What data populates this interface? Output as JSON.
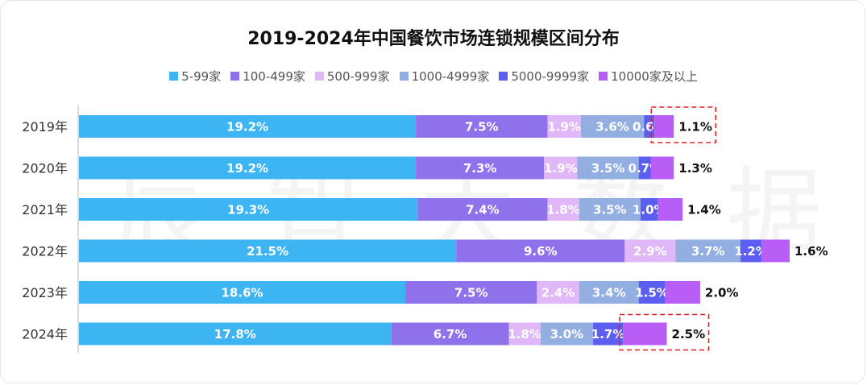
{
  "chart_data": {
    "type": "bar",
    "orientation": "horizontal",
    "stacked": true,
    "title": "2019-2024年中国餐饮市场连锁规模区间分布",
    "categories": [
      "2019年",
      "2020年",
      "2021年",
      "2022年",
      "2023年",
      "2024年"
    ],
    "series": [
      {
        "name": "5-99家",
        "color": "#3db5f2",
        "values": [
          19.2,
          19.2,
          19.3,
          21.5,
          18.6,
          17.8
        ],
        "labels": [
          "19.2%",
          "19.2%",
          "19.3%",
          "21.5%",
          "18.6%",
          "17.8%"
        ]
      },
      {
        "name": "100-499家",
        "color": "#8f72eb",
        "values": [
          7.5,
          7.3,
          7.4,
          9.6,
          7.5,
          6.7
        ],
        "labels": [
          "7.5%",
          "7.3%",
          "7.4%",
          "9.6%",
          "7.5%",
          "6.7%"
        ]
      },
      {
        "name": "500-999家",
        "color": "#e0b8f7",
        "values": [
          1.9,
          1.9,
          1.8,
          2.9,
          2.4,
          1.8
        ],
        "labels": [
          "1.9%",
          "1.9%",
          "1.8%",
          "2.9%",
          "2.4%",
          "1.8%"
        ]
      },
      {
        "name": "1000-4999家",
        "color": "#93aee0",
        "values": [
          3.6,
          3.5,
          3.5,
          3.7,
          3.4,
          3.0
        ],
        "labels": [
          "3.6%",
          "3.5%",
          "3.5%",
          "3.7%",
          "3.4%",
          "3.0%"
        ]
      },
      {
        "name": "5000-9999家",
        "color": "#5b5ef0",
        "values": [
          0.6,
          0.7,
          1.0,
          1.2,
          1.5,
          1.7
        ],
        "labels": [
          "0.6%",
          "0.7%",
          "1.0%",
          "1.2%",
          "1.5%",
          "1.7%"
        ]
      },
      {
        "name": "10000家及以上",
        "color": "#b85df5",
        "values": [
          1.1,
          1.3,
          1.4,
          1.6,
          2.0,
          2.5
        ],
        "labels": [
          "1.1%",
          "1.3%",
          "1.4%",
          "1.6%",
          "2.0%",
          "2.5%"
        ]
      }
    ],
    "highlighted": [
      {
        "category": "2019年",
        "series": "10000家及以上"
      },
      {
        "category": "2024年",
        "series": "10000家及以上"
      }
    ],
    "legend_position": "top-center",
    "xlabel": "",
    "ylabel": "",
    "grid": false
  },
  "watermark": [
    "辰",
    "智",
    "大",
    "数",
    "据"
  ]
}
